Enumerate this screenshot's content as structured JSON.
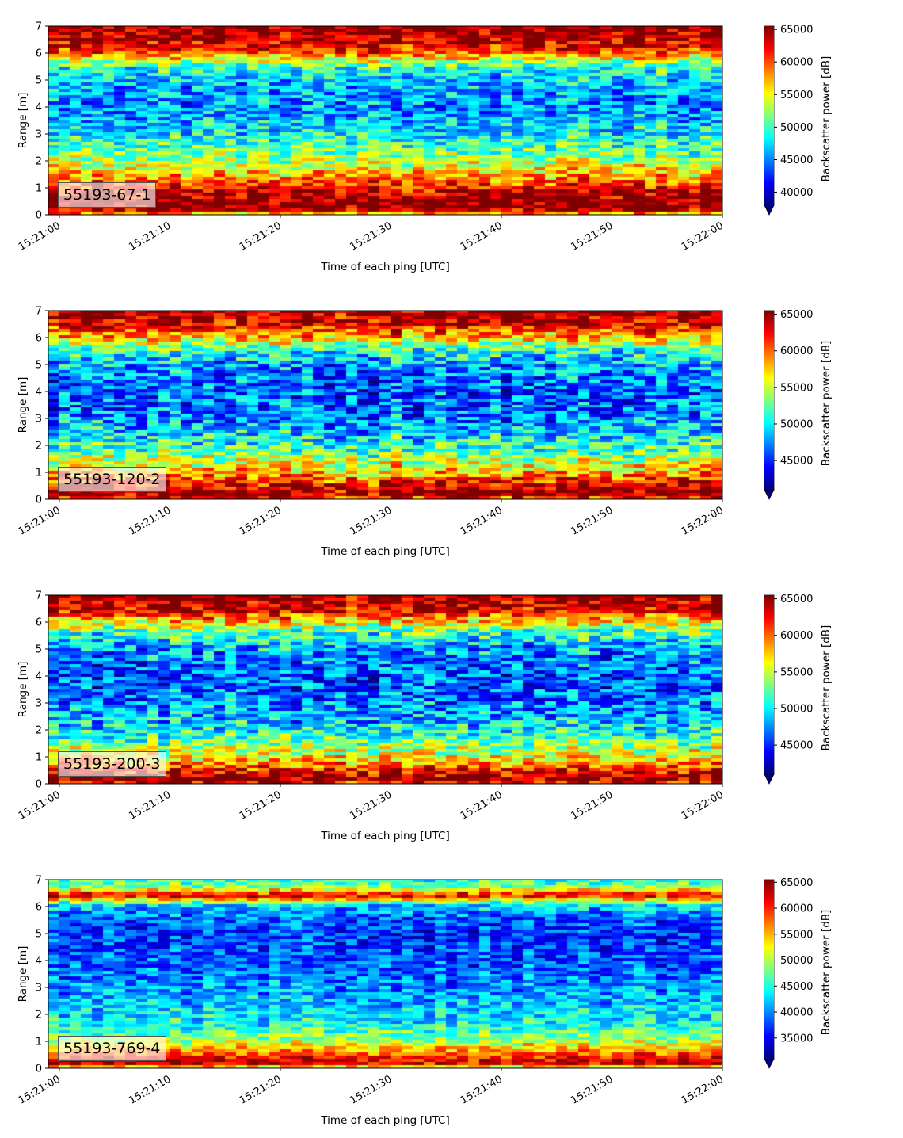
{
  "chart_data": [
    {
      "type": "heatmap",
      "label": "55193-67-1",
      "xlabel": "Time of each ping [UTC]",
      "ylabel": "Range [m]",
      "x_ticks": [
        "15:21:00",
        "15:21:10",
        "15:21:20",
        "15:21:30",
        "15:21:40",
        "15:21:50",
        "15:22:00"
      ],
      "xlim": [
        "15:20:59",
        "15:22:00"
      ],
      "y_ticks": [
        0,
        1,
        2,
        3,
        4,
        5,
        6,
        7
      ],
      "ylim": [
        0,
        7
      ],
      "colorbar": {
        "label": "Backscatter power [dB]",
        "vmin": 38000,
        "vmax": 65500,
        "ticks": [
          40000,
          45000,
          50000,
          55000,
          60000,
          65000
        ],
        "extend": "min"
      },
      "colormap": "jet",
      "profile": {
        "range_m": [
          0,
          0.2,
          0.5,
          1.0,
          1.5,
          2.0,
          3.0,
          4.0,
          5.0,
          5.5,
          6.0,
          6.5,
          7.0
        ],
        "value": [
          55000,
          65500,
          65500,
          62000,
          57000,
          53000,
          48000,
          45000,
          47000,
          50000,
          60000,
          64000,
          65500
        ]
      }
    },
    {
      "type": "heatmap",
      "label": "55193-120-2",
      "xlabel": "Time of each ping [UTC]",
      "ylabel": "Range [m]",
      "x_ticks": [
        "15:21:00",
        "15:21:10",
        "15:21:20",
        "15:21:30",
        "15:21:40",
        "15:21:50",
        "15:22:00"
      ],
      "xlim": [
        "15:20:59",
        "15:22:00"
      ],
      "y_ticks": [
        0,
        1,
        2,
        3,
        4,
        5,
        6,
        7
      ],
      "ylim": [
        0,
        7
      ],
      "colorbar": {
        "label": "Backscatter power [dB]",
        "vmin": 41000,
        "vmax": 65500,
        "ticks": [
          45000,
          50000,
          55000,
          60000,
          65000
        ],
        "extend": "min"
      },
      "colormap": "jet",
      "profile": {
        "range_m": [
          0,
          0.2,
          0.5,
          1.0,
          1.5,
          2.0,
          3.0,
          4.0,
          5.0,
          5.5,
          6.0,
          6.5,
          7.0
        ],
        "value": [
          60000,
          65500,
          63000,
          58000,
          54000,
          51000,
          47000,
          46000,
          48000,
          51000,
          58000,
          63000,
          65500
        ]
      }
    },
    {
      "type": "heatmap",
      "label": "55193-200-3",
      "xlabel": "Time of each ping [UTC]",
      "ylabel": "Range [m]",
      "x_ticks": [
        "15:21:00",
        "15:21:10",
        "15:21:20",
        "15:21:30",
        "15:21:40",
        "15:21:50",
        "15:22:00"
      ],
      "xlim": [
        "15:20:59",
        "15:22:00"
      ],
      "y_ticks": [
        0,
        1,
        2,
        3,
        4,
        5,
        6,
        7
      ],
      "ylim": [
        0,
        7
      ],
      "colorbar": {
        "label": "Backscatter power [dB]",
        "vmin": 41000,
        "vmax": 65500,
        "ticks": [
          45000,
          50000,
          55000,
          60000,
          65000
        ],
        "extend": "min"
      },
      "colormap": "jet",
      "profile": {
        "range_m": [
          0,
          0.2,
          0.5,
          1.0,
          1.5,
          2.0,
          3.0,
          4.0,
          5.0,
          5.5,
          6.0,
          6.5,
          7.0
        ],
        "value": [
          62000,
          65500,
          62000,
          56000,
          53000,
          50000,
          47000,
          46000,
          48000,
          51000,
          57000,
          64000,
          65500
        ]
      }
    },
    {
      "type": "heatmap",
      "label": "55193-769-4",
      "xlabel": "Time of each ping [UTC]",
      "ylabel": "Range [m]",
      "x_ticks": [
        "15:21:00",
        "15:21:10",
        "15:21:20",
        "15:21:30",
        "15:21:40",
        "15:21:50",
        "15:22:00"
      ],
      "xlim": [
        "15:20:59",
        "15:22:00"
      ],
      "y_ticks": [
        0,
        1,
        2,
        3,
        4,
        5,
        6,
        7
      ],
      "ylim": [
        0,
        7
      ],
      "colorbar": {
        "label": "Backscatter power [dB]",
        "vmin": 31000,
        "vmax": 65500,
        "ticks": [
          35000,
          40000,
          45000,
          50000,
          55000,
          60000,
          65000
        ],
        "extend": "min"
      },
      "colormap": "jet",
      "profile": {
        "range_m": [
          0,
          0.2,
          0.4,
          1.0,
          1.5,
          2.0,
          3.0,
          4.0,
          5.0,
          5.5,
          6.0,
          6.4,
          6.7,
          7.0
        ],
        "value": [
          50000,
          64000,
          60000,
          50000,
          45000,
          43000,
          40000,
          38000,
          37000,
          38000,
          42000,
          62000,
          48000,
          45000
        ]
      }
    }
  ]
}
